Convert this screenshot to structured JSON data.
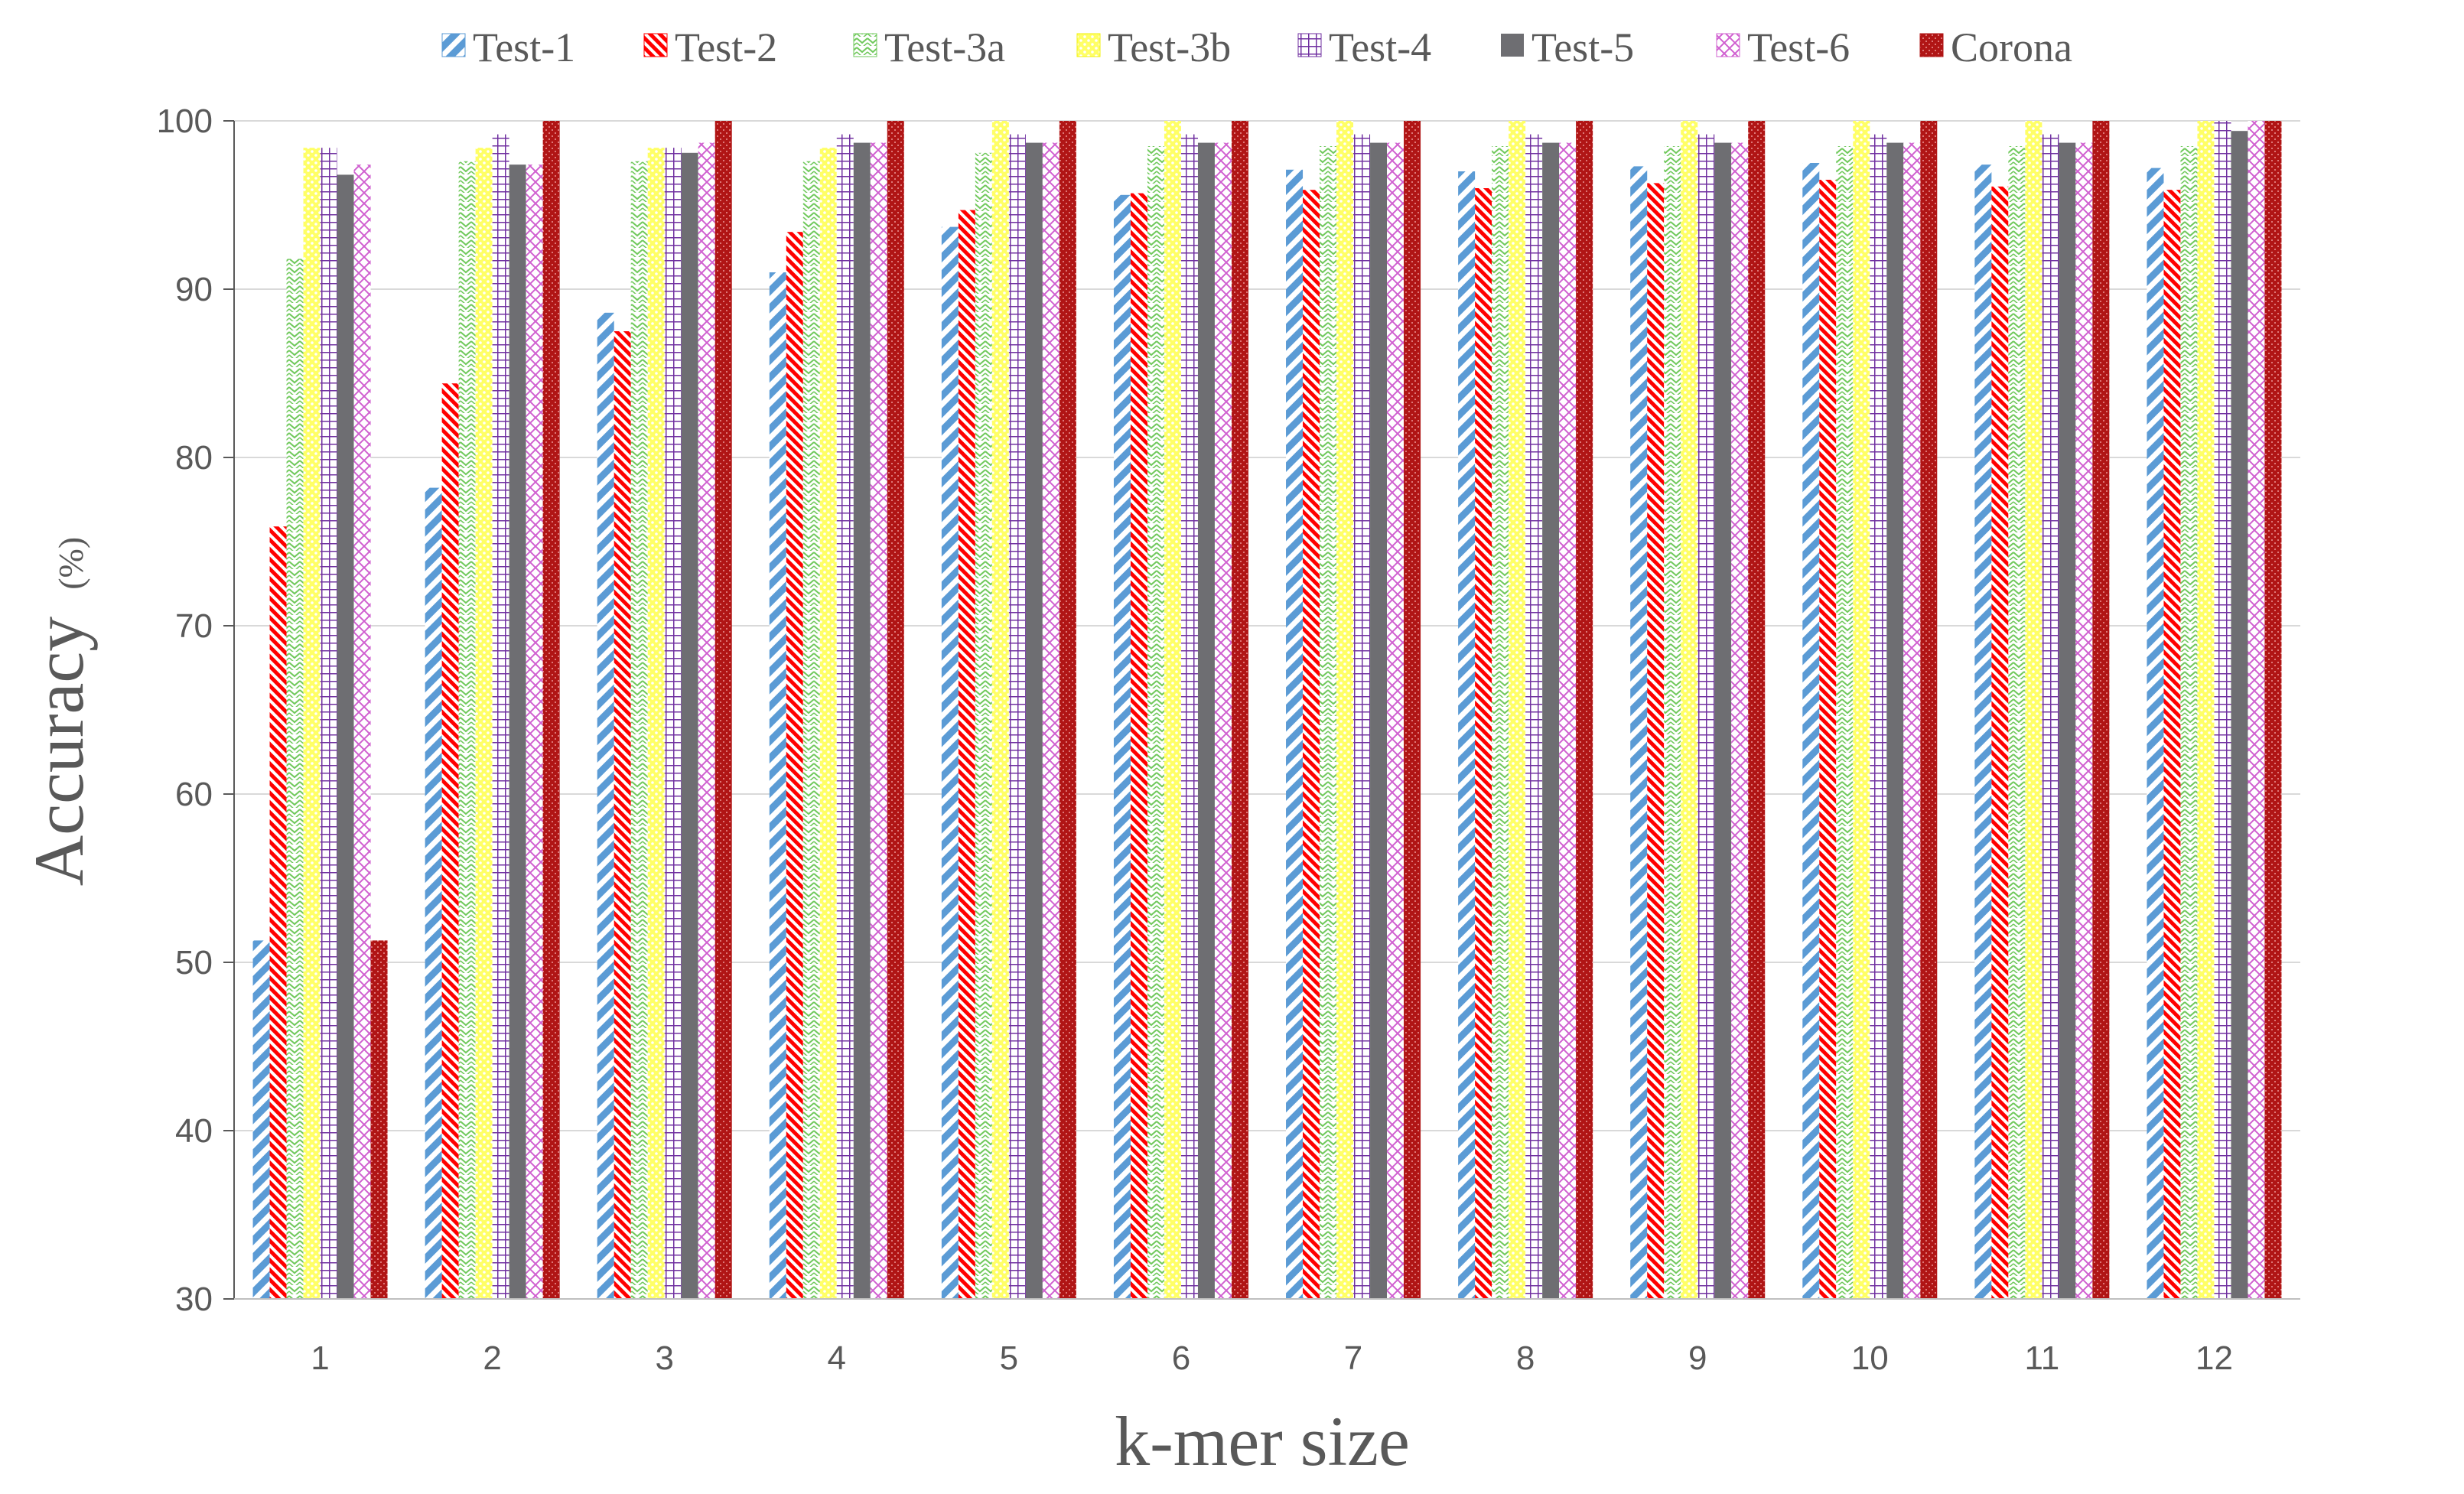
{
  "chart_data": {
    "type": "bar",
    "xlabel": "k-mer size",
    "ylabel": "Accuracy",
    "ylabel_unit": "(%)",
    "ylim": [
      30,
      100
    ],
    "yticks": [
      30,
      40,
      50,
      60,
      70,
      80,
      90,
      100
    ],
    "grid": true,
    "legend_position": "top",
    "categories": [
      "1",
      "2",
      "3",
      "4",
      "5",
      "6",
      "7",
      "8",
      "9",
      "10",
      "11",
      "12"
    ],
    "series": [
      {
        "name": "Test-1",
        "color": "#5b9bd5",
        "pattern": "diagonal-stripes",
        "values": [
          51.3,
          78.2,
          88.6,
          91.0,
          93.7,
          95.6,
          97.1,
          97.0,
          97.3,
          97.5,
          97.4,
          97.2
        ]
      },
      {
        "name": "Test-2",
        "color": "#ff0000",
        "pattern": "dense-diagonal-stripes",
        "values": [
          75.9,
          84.4,
          87.5,
          93.4,
          94.7,
          95.7,
          95.9,
          96.0,
          96.3,
          96.5,
          96.1,
          95.9
        ]
      },
      {
        "name": "Test-3a",
        "color": "#70c95c",
        "pattern": "zigzag",
        "values": [
          91.8,
          97.6,
          97.6,
          97.6,
          98.1,
          98.5,
          98.5,
          98.5,
          98.5,
          98.5,
          98.5,
          98.5
        ]
      },
      {
        "name": "Test-3b",
        "color": "#f2f20a",
        "pattern": "dots",
        "values": [
          98.4,
          98.4,
          98.4,
          98.4,
          100,
          100,
          100,
          100,
          100,
          100,
          100,
          100
        ]
      },
      {
        "name": "Test-4",
        "color": "#7030a0",
        "pattern": "grid",
        "values": [
          98.4,
          99.2,
          98.4,
          99.2,
          99.2,
          99.2,
          99.2,
          99.2,
          99.2,
          99.2,
          99.2,
          100
        ]
      },
      {
        "name": "Test-5",
        "color": "#6e6e72",
        "pattern": "solid",
        "values": [
          96.8,
          97.4,
          98.1,
          98.7,
          98.7,
          98.7,
          98.7,
          98.7,
          98.7,
          98.7,
          98.7,
          99.4
        ]
      },
      {
        "name": "Test-6",
        "color": "#d060d0",
        "pattern": "diamond",
        "values": [
          97.4,
          97.4,
          98.7,
          98.7,
          98.7,
          98.7,
          98.7,
          98.7,
          98.7,
          98.7,
          98.7,
          100
        ]
      },
      {
        "name": "Corona",
        "color": "#b01515",
        "pattern": "speckle",
        "values": [
          51.3,
          100,
          100,
          100,
          100,
          100,
          100,
          100,
          100,
          100,
          100,
          100
        ]
      }
    ]
  }
}
